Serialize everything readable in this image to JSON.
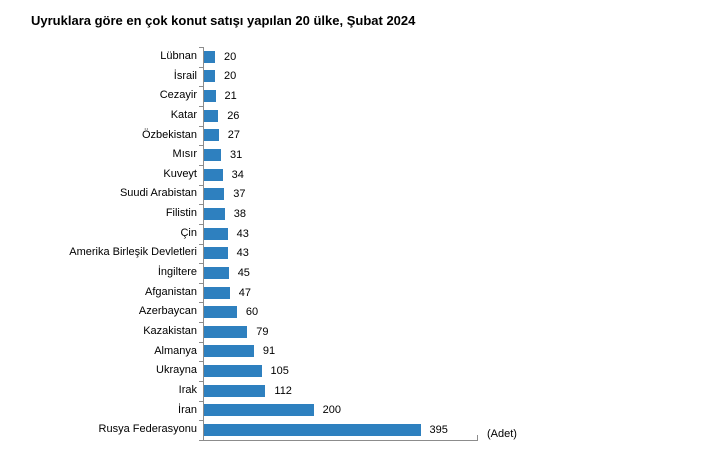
{
  "chart_data": {
    "type": "bar",
    "orientation": "horizontal",
    "title": "Uyruklara göre en çok konut satışı yapılan 20 ülke, Şubat 2024",
    "unit_label": "(Adet)",
    "xlabel": "(Adet)",
    "ylabel": "",
    "xlim": [
      0,
      500
    ],
    "grid": false,
    "legend": false,
    "bar_color": "#2E80BF",
    "axis_color": "#8c8c8c",
    "categories": [
      "Lübnan",
      "İsrail",
      "Cezayir",
      "Katar",
      "Özbekistan",
      "Mısır",
      "Kuveyt",
      "Suudi Arabistan",
      "Filistin",
      "Çin",
      "Amerika Birleşik Devletleri",
      "İngiltere",
      "Afganistan",
      "Azerbaycan",
      "Kazakistan",
      "Almanya",
      "Ukrayna",
      "Irak",
      "İran",
      "Rusya Federasyonu"
    ],
    "values": [
      20,
      20,
      21,
      26,
      27,
      31,
      34,
      37,
      38,
      43,
      43,
      45,
      47,
      60,
      79,
      91,
      105,
      112,
      200,
      395
    ]
  }
}
